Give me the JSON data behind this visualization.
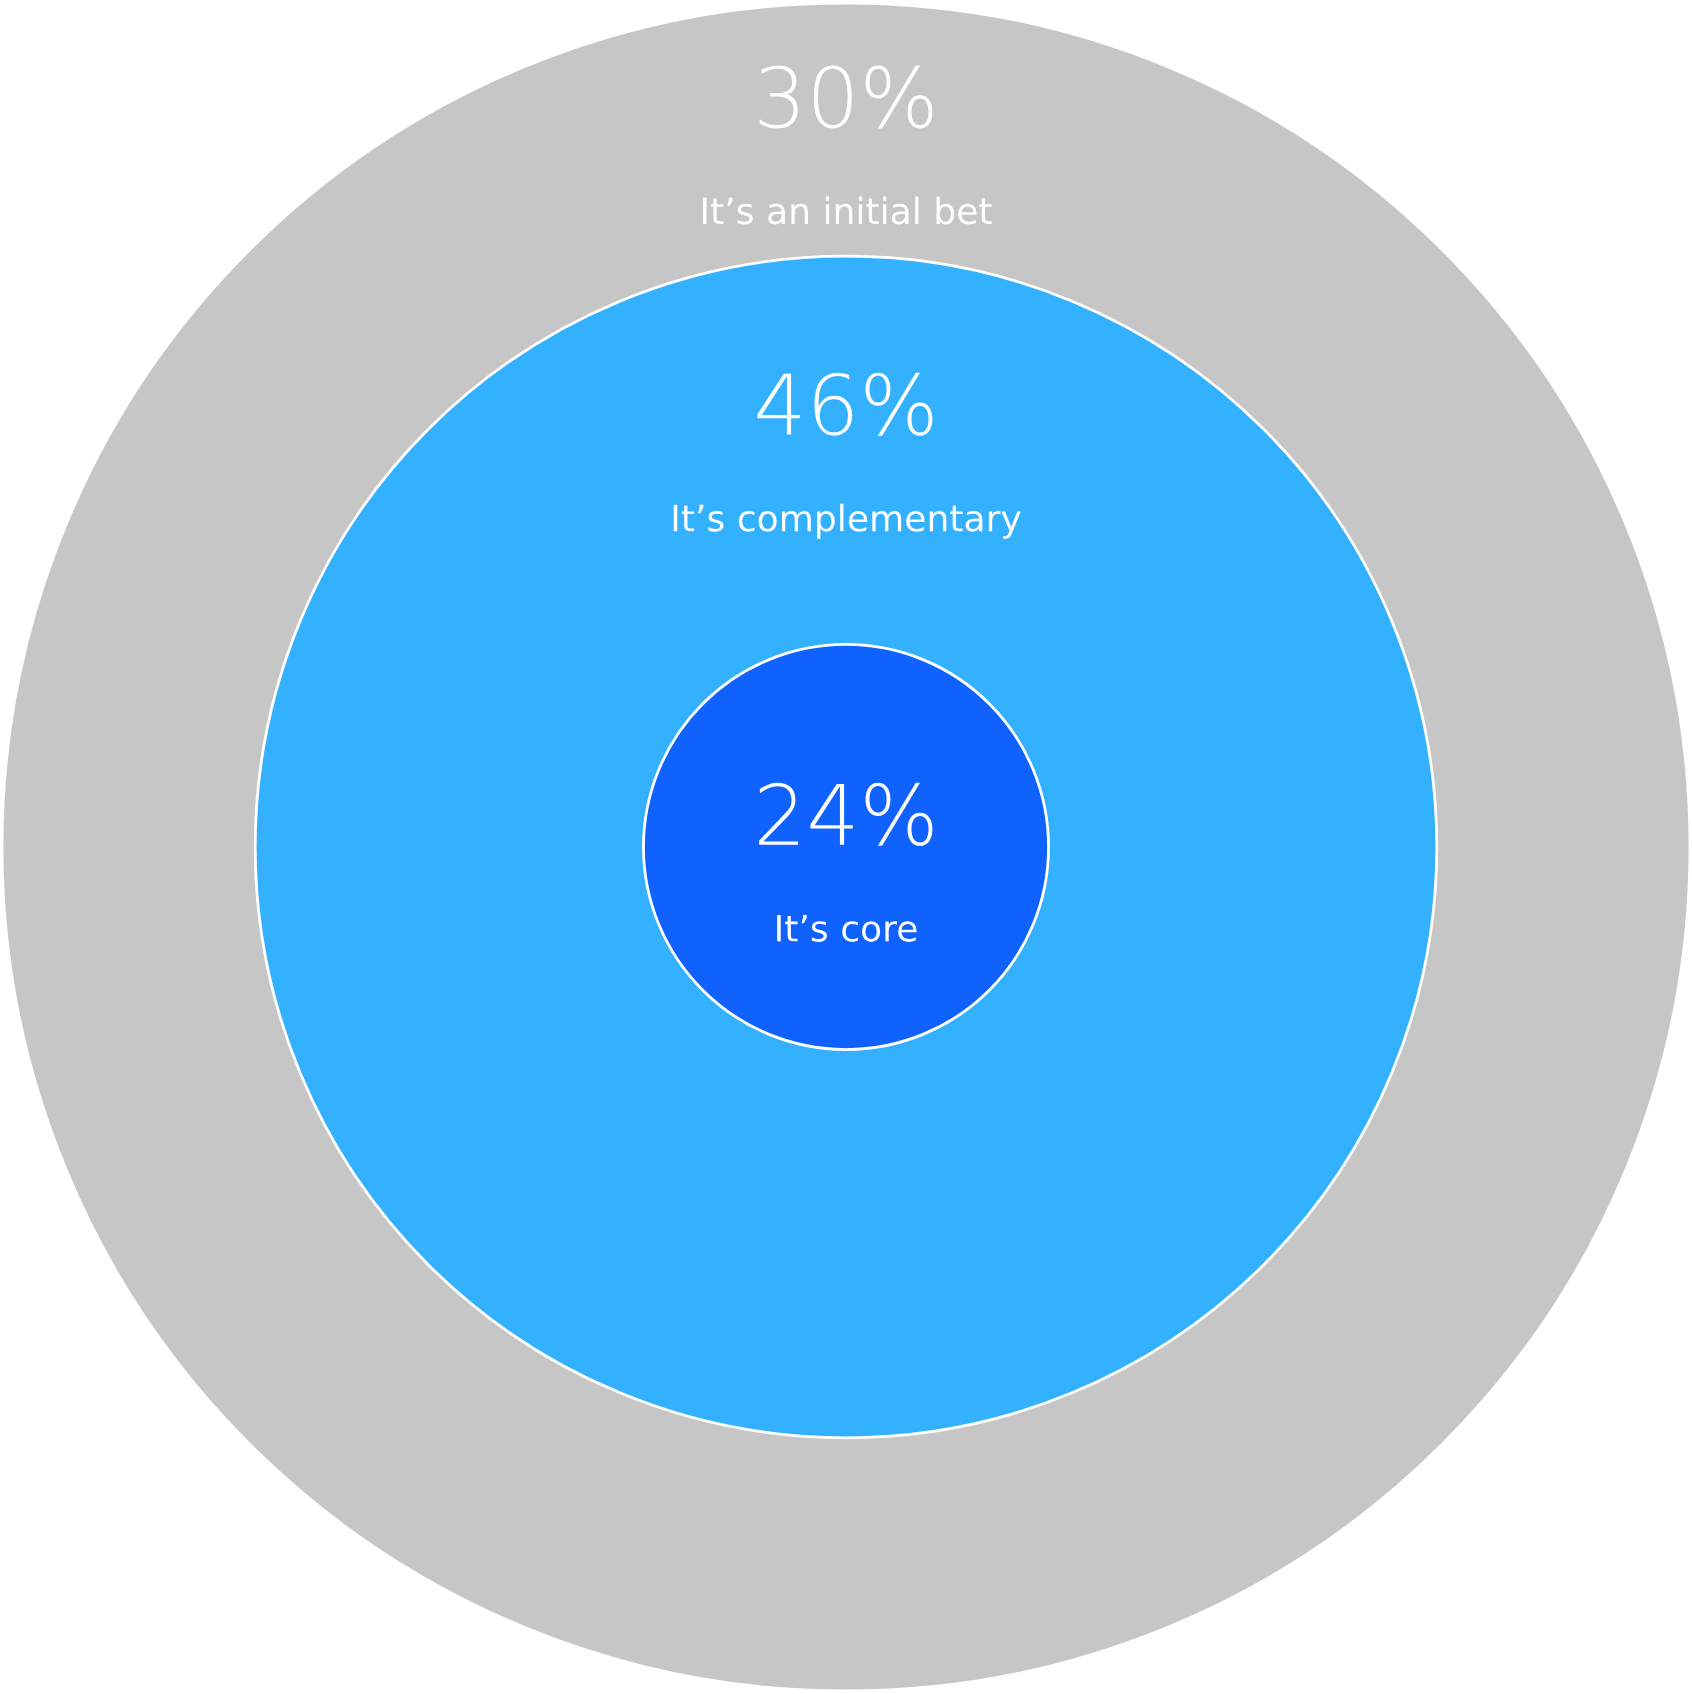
{
  "chart_data": {
    "type": "other",
    "categories": [
      "It’s an initial bet",
      "It’s complementary",
      "It’s core"
    ],
    "values": [
      30,
      46,
      24
    ],
    "value_labels": [
      "30%",
      "46%",
      "24%"
    ],
    "colors": [
      "#c6c6c6",
      "#33b1ff",
      "#0f62fe"
    ]
  }
}
